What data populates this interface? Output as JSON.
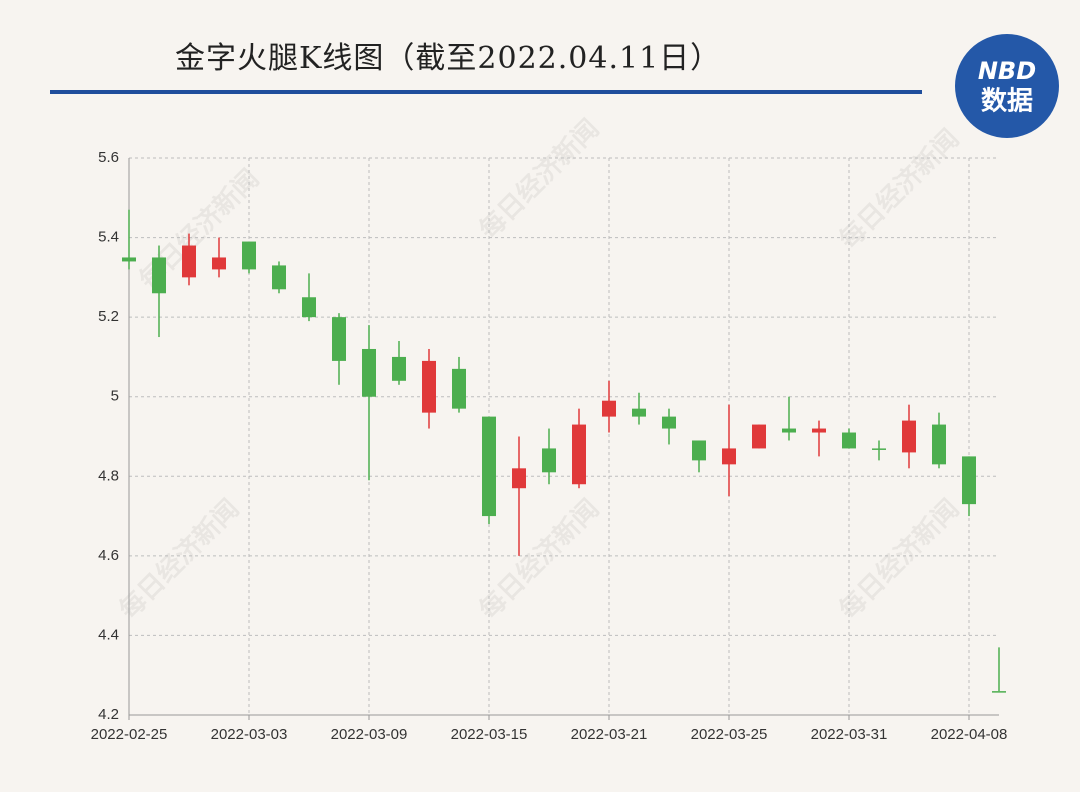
{
  "chart_data": {
    "type": "candlestick",
    "title": "金字火腿K线图（截至2022.04.11日）",
    "logo": [
      "NBD",
      "数据"
    ],
    "watermark": "每日经济新闻",
    "categories": [
      "2022-02-25",
      null,
      null,
      null,
      "2022-03-03",
      null,
      null,
      null,
      "2022-03-09",
      null,
      null,
      null,
      "2022-03-15",
      null,
      null,
      null,
      "2022-03-21",
      null,
      null,
      null,
      "2022-03-25",
      null,
      null,
      null,
      "2022-03-31",
      null,
      null,
      null,
      "2022-04-08",
      null
    ],
    "open": [
      5.35,
      5.35,
      5.3,
      5.32,
      5.39,
      5.33,
      5.25,
      5.2,
      5.12,
      5.1,
      4.96,
      5.07,
      4.95,
      4.77,
      4.87,
      4.78,
      4.95,
      4.97,
      4.95,
      4.89,
      4.83,
      4.87,
      4.92,
      4.91,
      4.91,
      4.87,
      4.86,
      4.93,
      4.85,
      4.26
    ],
    "high": [
      5.47,
      5.38,
      5.41,
      5.4,
      5.39,
      5.34,
      5.31,
      5.21,
      5.18,
      5.14,
      5.12,
      5.1,
      4.95,
      4.9,
      4.92,
      4.97,
      5.04,
      5.01,
      4.97,
      4.89,
      4.98,
      4.93,
      5.0,
      4.94,
      4.92,
      4.89,
      4.98,
      4.96,
      4.85,
      4.37
    ],
    "low": [
      5.32,
      5.15,
      5.28,
      5.3,
      5.31,
      5.26,
      5.19,
      5.03,
      4.79,
      5.03,
      4.92,
      4.96,
      4.68,
      4.6,
      4.78,
      4.77,
      4.91,
      4.93,
      4.88,
      4.81,
      4.75,
      4.87,
      4.89,
      4.85,
      4.87,
      4.84,
      4.82,
      4.82,
      4.7,
      4.26
    ],
    "close": [
      5.34,
      5.26,
      5.38,
      5.35,
      5.32,
      5.27,
      5.2,
      5.09,
      5.0,
      5.04,
      5.09,
      4.97,
      4.7,
      4.82,
      4.81,
      4.93,
      4.99,
      4.95,
      4.92,
      4.84,
      4.87,
      4.93,
      4.91,
      4.92,
      4.87,
      4.87,
      4.94,
      4.83,
      4.73,
      4.26
    ],
    "up_color": "#e0393a",
    "down_color": "#4cae4f",
    "ylim": [
      4.2,
      5.6
    ],
    "yticks": [
      4.2,
      4.4,
      4.6,
      4.8,
      5,
      5.2,
      5.4,
      5.6
    ],
    "grid": true
  }
}
